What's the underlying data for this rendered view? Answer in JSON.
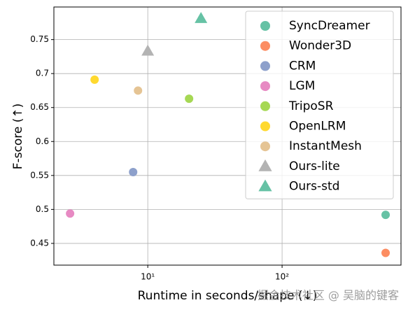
{
  "chart_data": {
    "type": "scatter",
    "xlabel": "Runtime in seconds/shape (↓)",
    "ylabel": "F-score (↑)",
    "xscale": "log",
    "xlim": [
      2.0,
      768
    ],
    "ylim": [
      0.418,
      0.798
    ],
    "xticks": [
      {
        "value": 10,
        "label": "10¹"
      },
      {
        "value": 100,
        "label": "10²"
      }
    ],
    "yticks": [
      0.45,
      0.5,
      0.55,
      0.6,
      0.65,
      0.7,
      0.75
    ],
    "grid": true,
    "legend": "upper right",
    "series": [
      {
        "name": "SyncDreamer",
        "color": "#66c2a5",
        "marker": "circle",
        "x": [
          590
        ],
        "values": [
          0.492
        ]
      },
      {
        "name": "Wonder3D",
        "color": "#fc8d62",
        "marker": "circle",
        "x": [
          590
        ],
        "values": [
          0.436
        ]
      },
      {
        "name": "CRM",
        "color": "#8da0cb",
        "marker": "circle",
        "x": [
          7.78
        ],
        "values": [
          0.555
        ]
      },
      {
        "name": "LGM",
        "color": "#e78ac3",
        "marker": "circle",
        "x": [
          2.64
        ],
        "values": [
          0.494
        ]
      },
      {
        "name": "TripoSR",
        "color": "#a6d854",
        "marker": "circle",
        "x": [
          20.3
        ],
        "values": [
          0.663
        ]
      },
      {
        "name": "OpenLRM",
        "color": "#ffd92f",
        "marker": "circle",
        "x": [
          4.02
        ],
        "values": [
          0.691
        ]
      },
      {
        "name": "InstantMesh",
        "color": "#e5c494",
        "marker": "circle",
        "x": [
          8.46
        ],
        "values": [
          0.675
        ]
      },
      {
        "name": "Ours-lite",
        "color": "#b3b3b3",
        "marker": "triangle",
        "x": [
          10
        ],
        "values": [
          0.733
        ]
      },
      {
        "name": "Ours-std",
        "color": "#66c2a5",
        "marker": "triangle",
        "x": [
          24.9
        ],
        "values": [
          0.781
        ]
      }
    ],
    "watermark": "掘金技术社区 @ 吴脑的键客"
  }
}
